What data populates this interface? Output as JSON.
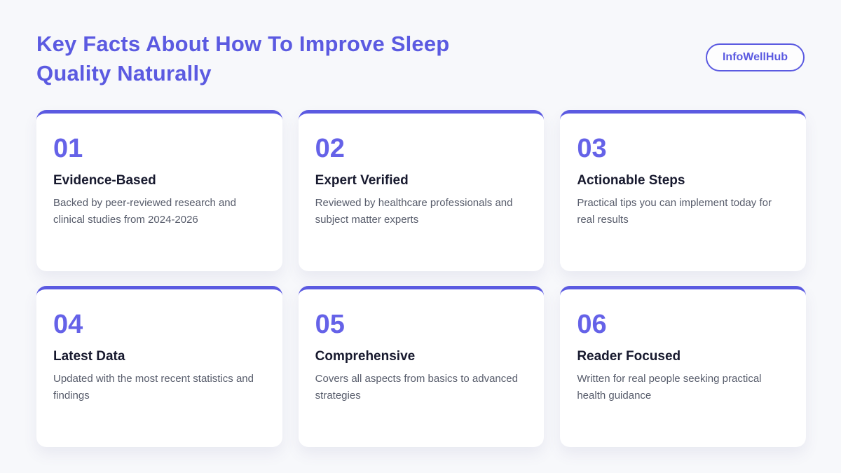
{
  "page": {
    "title": "Key Facts About How To Improve Sleep Quality Naturally",
    "brand": "InfoWellHub",
    "accent_color": "#5b5ae1",
    "number_color": "#6562e8",
    "background_color": "#f7f8fb"
  },
  "cards": [
    {
      "number": "01",
      "title": "Evidence-Based",
      "description": "Backed by peer-reviewed research and clinical studies from 2024-2026"
    },
    {
      "number": "02",
      "title": "Expert Verified",
      "description": "Reviewed by healthcare professionals and subject matter experts"
    },
    {
      "number": "03",
      "title": "Actionable Steps",
      "description": "Practical tips you can implement today for real results"
    },
    {
      "number": "04",
      "title": "Latest Data",
      "description": "Updated with the most recent statistics and findings"
    },
    {
      "number": "05",
      "title": "Comprehensive",
      "description": "Covers all aspects from basics to advanced strategies"
    },
    {
      "number": "06",
      "title": "Reader Focused",
      "description": "Written for real people seeking practical health guidance"
    }
  ]
}
